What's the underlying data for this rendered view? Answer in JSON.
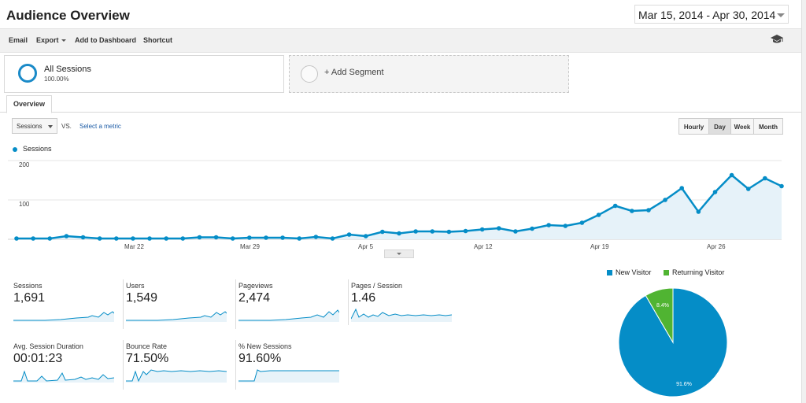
{
  "header": {
    "title": "Audience Overview",
    "date_range": "Mar 15, 2014 - Apr 30, 2014"
  },
  "toolbar": {
    "email": "Email",
    "export": "Export",
    "add_to_dashboard": "Add to Dashboard",
    "shortcut": "Shortcut",
    "icon": "graduation-cap-icon"
  },
  "segments": {
    "all": {
      "name": "All Sessions",
      "percent": "100.00%"
    },
    "add_label": "+ Add Segment"
  },
  "tabs": {
    "overview": "Overview"
  },
  "metric_selector": {
    "selected": "Sessions",
    "vs": "VS.",
    "select_metric": "Select a metric"
  },
  "granularity": {
    "options": [
      "Hourly",
      "Day",
      "Week",
      "Month"
    ],
    "active": "Day"
  },
  "chart_data": {
    "type": "area",
    "series": [
      {
        "name": "Sessions",
        "color": "#058dc7",
        "values": [
          2,
          2,
          2,
          8,
          5,
          2,
          2,
          2,
          2,
          2,
          2,
          5,
          5,
          2,
          4,
          4,
          4,
          2,
          6,
          2,
          12,
          8,
          19,
          15,
          20,
          20,
          19,
          21,
          25,
          28,
          20,
          27,
          36,
          34,
          42,
          62,
          85,
          72,
          74,
          100,
          130,
          70,
          120,
          163,
          128,
          155,
          135
        ]
      }
    ],
    "x_labels": [
      "Mar 22",
      "Mar 29",
      "Apr 5",
      "Apr 12",
      "Apr 19",
      "Apr 26"
    ],
    "y_ticks": [
      100,
      200
    ],
    "ylim": [
      0,
      200
    ],
    "grid": true
  },
  "metrics": [
    {
      "label": "Sessions",
      "value": "1,691"
    },
    {
      "label": "Users",
      "value": "1,549"
    },
    {
      "label": "Pageviews",
      "value": "2,474"
    },
    {
      "label": "Pages / Session",
      "value": "1.46"
    },
    {
      "label": "Avg. Session Duration",
      "value": "00:01:23"
    },
    {
      "label": "Bounce Rate",
      "value": "71.50%"
    },
    {
      "label": "% New Sessions",
      "value": "91.60%"
    }
  ],
  "pie_chart": {
    "type": "pie",
    "slices": [
      {
        "name": "New Visitor",
        "value": 91.6,
        "label": "91.6%",
        "color": "#058dc7"
      },
      {
        "name": "Returning Visitor",
        "value": 8.4,
        "label": "8.4%",
        "color": "#50b432"
      }
    ]
  }
}
